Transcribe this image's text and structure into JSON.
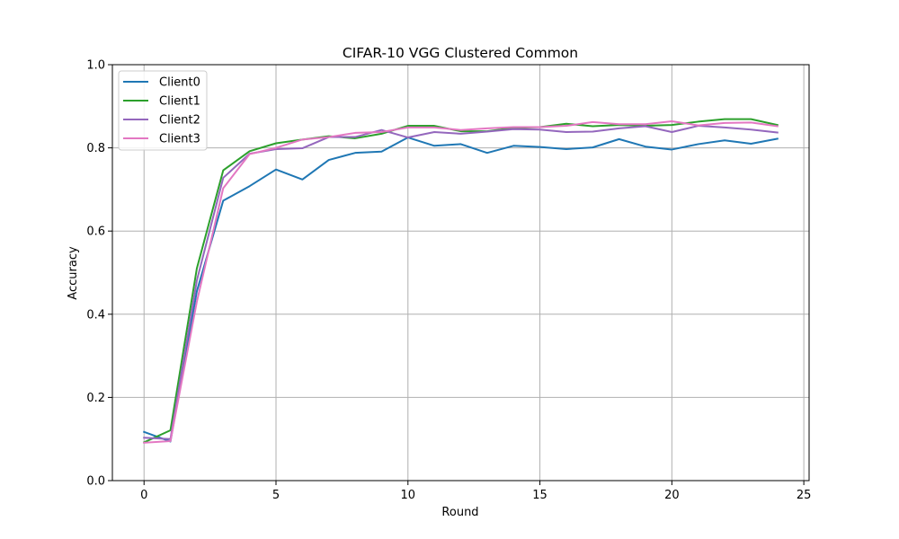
{
  "chart_data": {
    "type": "line",
    "title": "CIFAR-10 VGG Clustered Common",
    "xlabel": "Round",
    "ylabel": "Accuracy",
    "xlim": [
      -1.2,
      25.2
    ],
    "ylim": [
      0.0,
      1.0
    ],
    "xticks": [
      0,
      5,
      10,
      15,
      20,
      25
    ],
    "yticks": [
      0.0,
      0.2,
      0.4,
      0.6,
      0.8,
      1.0
    ],
    "xtick_labels": [
      "0",
      "5",
      "10",
      "15",
      "20",
      "25"
    ],
    "ytick_labels": [
      "0.0",
      "0.2",
      "0.4",
      "0.6",
      "0.8",
      "1.0"
    ],
    "grid": true,
    "legend_position": "top-left",
    "x": [
      0,
      1,
      2,
      3,
      4,
      5,
      6,
      7,
      8,
      9,
      10,
      11,
      12,
      13,
      14,
      15,
      16,
      17,
      18,
      19,
      20,
      21,
      22,
      23,
      24
    ],
    "series": [
      {
        "name": "Client0",
        "color": "#1f77b4",
        "values": [
          0.117,
          0.094,
          0.455,
          0.673,
          0.708,
          0.748,
          0.724,
          0.771,
          0.788,
          0.791,
          0.825,
          0.805,
          0.809,
          0.788,
          0.805,
          0.802,
          0.797,
          0.801,
          0.821,
          0.803,
          0.796,
          0.809,
          0.818,
          0.81,
          0.822
        ]
      },
      {
        "name": "Client1",
        "color": "#2ca02c",
        "values": [
          0.092,
          0.121,
          0.51,
          0.746,
          0.792,
          0.811,
          0.82,
          0.828,
          0.823,
          0.834,
          0.853,
          0.853,
          0.84,
          0.84,
          0.848,
          0.85,
          0.858,
          0.852,
          0.855,
          0.853,
          0.855,
          0.863,
          0.869,
          0.869,
          0.855
        ]
      },
      {
        "name": "Client2",
        "color": "#9467bd",
        "values": [
          0.103,
          0.1,
          0.481,
          0.728,
          0.786,
          0.797,
          0.799,
          0.826,
          0.826,
          0.843,
          0.825,
          0.838,
          0.834,
          0.839,
          0.845,
          0.844,
          0.838,
          0.839,
          0.847,
          0.852,
          0.838,
          0.853,
          0.849,
          0.844,
          0.837
        ]
      },
      {
        "name": "Client3",
        "color": "#e377c2",
        "values": [
          0.091,
          0.095,
          0.43,
          0.703,
          0.785,
          0.8,
          0.82,
          0.826,
          0.836,
          0.838,
          0.849,
          0.849,
          0.843,
          0.847,
          0.85,
          0.85,
          0.853,
          0.862,
          0.857,
          0.857,
          0.864,
          0.854,
          0.86,
          0.861,
          0.852
        ]
      }
    ]
  }
}
